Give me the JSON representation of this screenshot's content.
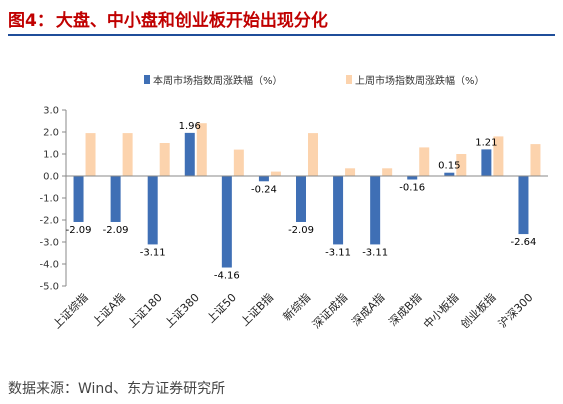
{
  "header": {
    "figure_no": "图4：",
    "title": "大盘、中小盘和创业板开始出现分化"
  },
  "source": "数据来源：Wind、东方证券研究所",
  "colors": {
    "current": "#3f6fb5",
    "previous": "#fcd3ad",
    "title": "#c00000",
    "rule": "#1f4e9a"
  },
  "chart_data": {
    "type": "bar",
    "categories": [
      "上证综指",
      "上证A指",
      "上证180",
      "上证380",
      "上证50",
      "上证B指",
      "新综指",
      "深证成指",
      "深成A指",
      "深成B指",
      "中小板指",
      "创业板指",
      "沪深300"
    ],
    "series": [
      {
        "name": "本周市场指数周涨跌幅（%）",
        "color": "#3f6fb5",
        "values": [
          -2.09,
          -2.09,
          -3.11,
          1.96,
          -4.16,
          -0.24,
          -2.09,
          -3.11,
          -3.11,
          -0.16,
          0.15,
          1.21,
          -2.64
        ],
        "labels": [
          "-2.09",
          "-2.09",
          "-3.11",
          "1.96",
          "-4.16",
          "-0.24",
          "-2.09",
          "-3.11",
          "-3.11",
          "-0.16",
          "0.15",
          "1.21",
          "-2.64"
        ]
      },
      {
        "name": "上周市场指数周涨跌幅（%）",
        "color": "#fcd3ad",
        "values": [
          1.95,
          1.95,
          1.5,
          2.4,
          1.2,
          0.2,
          1.95,
          0.35,
          0.35,
          1.3,
          1.0,
          1.8,
          1.45
        ]
      }
    ],
    "ylim": [
      -5.0,
      3.0
    ],
    "yticks": [
      3.0,
      2.0,
      1.0,
      0.0,
      -1.0,
      -2.0,
      -3.0,
      -4.0,
      -5.0
    ],
    "ytick_labels": [
      "3.0",
      "2.0",
      "1.0",
      "0.0",
      "-1.0",
      "-2.0",
      "-3.0",
      "-4.0",
      "-5.0"
    ],
    "grid": false,
    "legend": "top"
  }
}
